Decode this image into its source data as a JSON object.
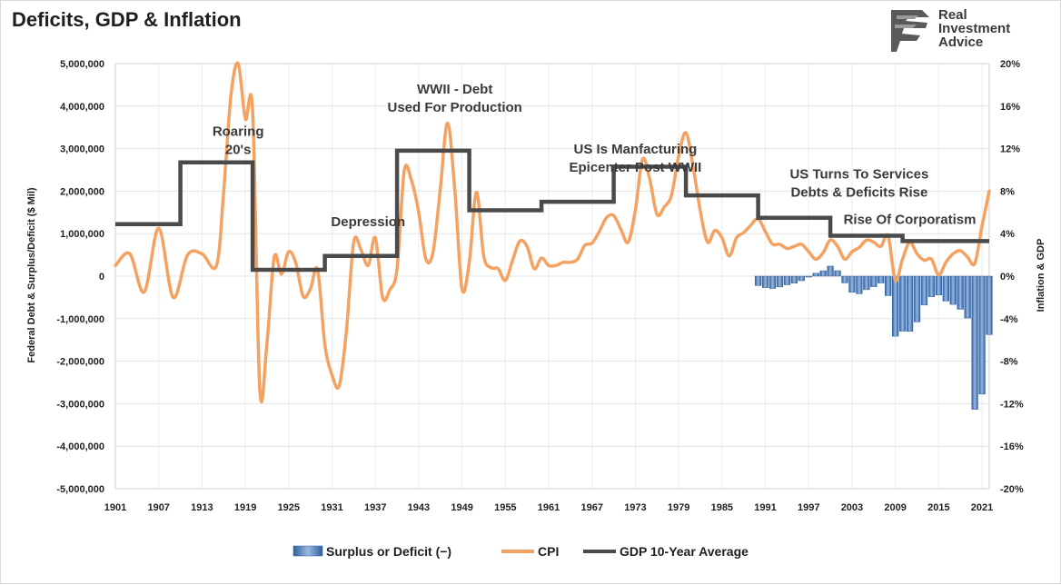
{
  "header": {
    "title": "Deficits, GDP & Inflation",
    "logo_lines": [
      "Real",
      "Investment",
      "Advice"
    ]
  },
  "chart_data": {
    "type": "bar+line",
    "title": "Deficits, GDP & Inflation",
    "ylabel_left": "Federal Debt & Surplus/Deficit ($ Mil)",
    "ylabel_right": "Inflation & GDP",
    "ylim_left": [
      -5000000,
      5000000
    ],
    "ylim_right": [
      -20,
      20
    ],
    "yticks_left": [
      "5,000,000",
      "4,000,000",
      "3,000,000",
      "2,000,000",
      "1,000,000",
      "0",
      "-1,000,000",
      "-2,000,000",
      "-3,000,000",
      "-4,000,000",
      "-5,000,000"
    ],
    "yticks_right": [
      "20%",
      "16%",
      "12%",
      "8%",
      "4%",
      "0%",
      "-4%",
      "-8%",
      "-12%",
      "-16%",
      "-20%"
    ],
    "xlim": [
      1901,
      2022
    ],
    "xticks": [
      "1901",
      "1907",
      "1913",
      "1919",
      "1925",
      "1931",
      "1937",
      "1943",
      "1949",
      "1955",
      "1961",
      "1967",
      "1973",
      "1979",
      "1985",
      "1991",
      "1997",
      "2003",
      "2009",
      "2015",
      "2021"
    ],
    "grid": true,
    "legend_position": "bottom",
    "legend": [
      {
        "name": "Surplus or Deficit (−)",
        "color": "#4f7fbf"
      },
      {
        "name": "CPI",
        "color": "#f4a261"
      },
      {
        "name": "GDP 10-Year Average",
        "color": "#4a4a4a"
      }
    ],
    "annotations": [
      {
        "text": [
          "Roaring",
          "20's"
        ],
        "x": 1918,
        "y": 3300000
      },
      {
        "text": [
          "Depression"
        ],
        "x": 1936,
        "y": 1180000
      },
      {
        "text": [
          "WWII - Debt",
          "Used For Production"
        ],
        "x": 1948,
        "y": 4300000
      },
      {
        "text": [
          "US Is Manfacturing",
          "Epicenter Post WWII"
        ],
        "x": 1973,
        "y": 2880000
      },
      {
        "text": [
          "US Turns To Services",
          "Debts & Deficits Rise"
        ],
        "x": 2004,
        "y": 2300000
      },
      {
        "text": [
          "Rise Of Corporatism"
        ],
        "x": 2011,
        "y": 1230000
      }
    ],
    "series": [
      {
        "name": "Surplus or Deficit (−)",
        "type": "bar",
        "axis": "left",
        "x": [
          1990,
          1991,
          1992,
          1993,
          1994,
          1995,
          1996,
          1997,
          1998,
          1999,
          2000,
          2001,
          2002,
          2003,
          2004,
          2005,
          2006,
          2007,
          2008,
          2009,
          2010,
          2011,
          2012,
          2013,
          2014,
          2015,
          2016,
          2017,
          2018,
          2019,
          2020,
          2021,
          2022
        ],
        "values": [
          -221000,
          -269000,
          -290000,
          -255000,
          -203000,
          -164000,
          -107000,
          -22000,
          69000,
          126000,
          236000,
          128000,
          -158000,
          -378000,
          -413000,
          -318000,
          -248000,
          -161000,
          -459000,
          -1413000,
          -1294000,
          -1300000,
          -1077000,
          -680000,
          -485000,
          -442000,
          -585000,
          -665000,
          -779000,
          -984000,
          -3132000,
          -2775000,
          -1375000
        ]
      },
      {
        "name": "CPI",
        "type": "line",
        "axis": "right",
        "x": [
          1901,
          1903,
          1905,
          1907,
          1909,
          1911,
          1913,
          1915,
          1916,
          1917,
          1918,
          1919,
          1920,
          1921,
          1922,
          1923,
          1924,
          1925,
          1926,
          1927,
          1928,
          1929,
          1930,
          1931,
          1932,
          1933,
          1934,
          1935,
          1936,
          1937,
          1938,
          1939,
          1940,
          1941,
          1942,
          1943,
          1944,
          1945,
          1946,
          1947,
          1948,
          1949,
          1950,
          1951,
          1952,
          1953,
          1954,
          1955,
          1956,
          1957,
          1958,
          1959,
          1960,
          1961,
          1962,
          1963,
          1964,
          1965,
          1966,
          1967,
          1968,
          1969,
          1970,
          1971,
          1972,
          1973,
          1974,
          1975,
          1976,
          1977,
          1978,
          1979,
          1980,
          1981,
          1982,
          1983,
          1984,
          1985,
          1986,
          1987,
          1988,
          1989,
          1990,
          1991,
          1992,
          1993,
          1994,
          1995,
          1996,
          1997,
          1998,
          1999,
          2000,
          2001,
          2002,
          2003,
          2004,
          2005,
          2006,
          2007,
          2008,
          2009,
          2010,
          2011,
          2012,
          2013,
          2014,
          2015,
          2016,
          2017,
          2018,
          2019,
          2020,
          2021,
          2022
        ],
        "values": [
          1.0,
          2.1,
          -1.5,
          4.5,
          -2.0,
          2.0,
          2.1,
          1.0,
          8.0,
          17.0,
          20.0,
          14.8,
          15.5,
          -10.7,
          -6.2,
          1.8,
          0.2,
          2.3,
          1.2,
          -1.9,
          -1.2,
          0.6,
          -6.4,
          -9.3,
          -10.3,
          -5.1,
          3.2,
          2.5,
          1.0,
          3.6,
          -2.0,
          -1.3,
          0.7,
          9.9,
          9.0,
          6.0,
          1.6,
          2.3,
          8.3,
          14.4,
          8.1,
          -1.2,
          1.3,
          7.9,
          1.9,
          0.8,
          0.7,
          -0.4,
          1.5,
          3.3,
          2.8,
          0.7,
          1.7,
          1.0,
          1.0,
          1.3,
          1.3,
          1.6,
          2.9,
          3.1,
          4.2,
          5.5,
          5.7,
          4.4,
          3.2,
          6.2,
          11.0,
          9.1,
          5.8,
          6.5,
          7.6,
          11.3,
          13.5,
          10.3,
          6.1,
          3.2,
          4.3,
          3.6,
          1.9,
          3.6,
          4.1,
          4.8,
          5.4,
          4.2,
          3.0,
          3.0,
          2.6,
          2.8,
          3.0,
          2.3,
          1.6,
          2.2,
          3.4,
          2.8,
          1.6,
          2.3,
          2.7,
          3.4,
          3.2,
          2.8,
          3.8,
          -0.4,
          1.6,
          3.2,
          2.1,
          1.5,
          1.6,
          0.1,
          1.3,
          2.1,
          2.4,
          1.8,
          1.2,
          4.7,
          8.0
        ]
      },
      {
        "name": "GDP 10-Year Average",
        "type": "step",
        "axis": "right",
        "steps": [
          {
            "x0": 1901,
            "x1": 1910,
            "y": 4.9
          },
          {
            "x0": 1910,
            "x1": 1920,
            "y": 10.7
          },
          {
            "x0": 1920,
            "x1": 1930,
            "y": 0.6
          },
          {
            "x0": 1930,
            "x1": 1940,
            "y": 1.9
          },
          {
            "x0": 1940,
            "x1": 1950,
            "y": 11.8
          },
          {
            "x0": 1950,
            "x1": 1960,
            "y": 6.2
          },
          {
            "x0": 1960,
            "x1": 1970,
            "y": 7.0
          },
          {
            "x0": 1970,
            "x1": 1980,
            "y": 10.3
          },
          {
            "x0": 1980,
            "x1": 1990,
            "y": 7.6
          },
          {
            "x0": 1990,
            "x1": 2000,
            "y": 5.5
          },
          {
            "x0": 2000,
            "x1": 2010,
            "y": 3.8
          },
          {
            "x0": 2010,
            "x1": 2022,
            "y": 3.3
          }
        ]
      }
    ]
  }
}
